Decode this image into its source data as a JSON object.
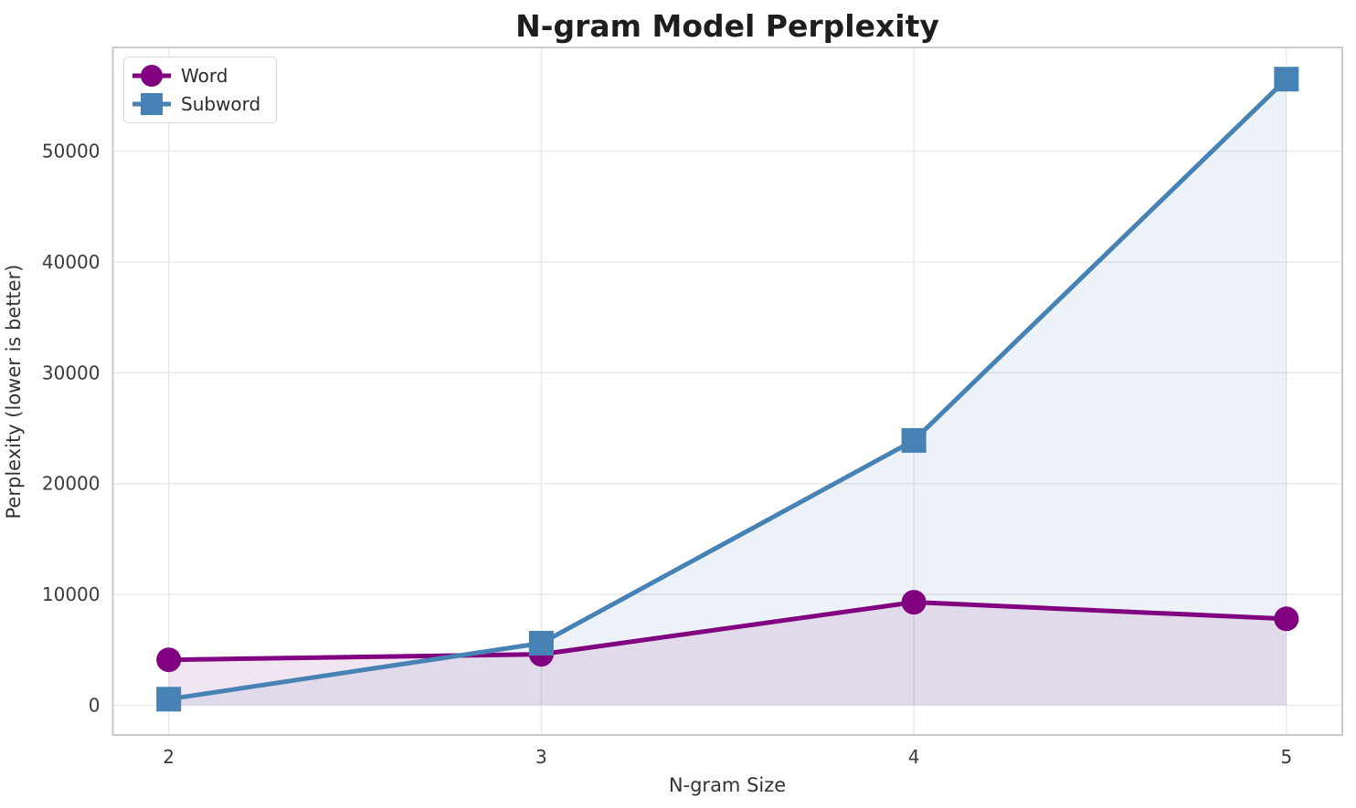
{
  "figure": {
    "title": "N-gram Model Perplexity"
  },
  "theme": {
    "background_color": "#ffffff",
    "grid_color": "#e8e8e8",
    "spine_color": "#cbcbcb",
    "tick_text_color": "#3a3a3a",
    "title_color": "#1e1e1e"
  },
  "chart_data": {
    "type": "line",
    "title": "N-gram Model Perplexity",
    "xlabel": "N-gram Size",
    "ylabel": "Perplexity (lower is better)",
    "x": [
      2,
      3,
      4,
      5
    ],
    "xticks": [
      "2",
      "3",
      "4",
      "5"
    ],
    "yticks": [
      0,
      10000,
      20000,
      30000,
      40000,
      50000
    ],
    "xlim": [
      1.85,
      5.15
    ],
    "ylim": [
      -2680,
      59360
    ],
    "grid": true,
    "legend_position": "upper left",
    "fill_to_zero": true,
    "line_width": 5,
    "marker_size": 27,
    "series": [
      {
        "name": "Word",
        "marker": "circle",
        "color": "#800080",
        "fill_opacity": 0.1,
        "values": [
          4100,
          4600,
          9300,
          7800
        ]
      },
      {
        "name": "Subword",
        "marker": "square",
        "color": "#4682b4",
        "fill_opacity": 0.1,
        "values": [
          550,
          5600,
          23900,
          56500
        ]
      }
    ]
  }
}
